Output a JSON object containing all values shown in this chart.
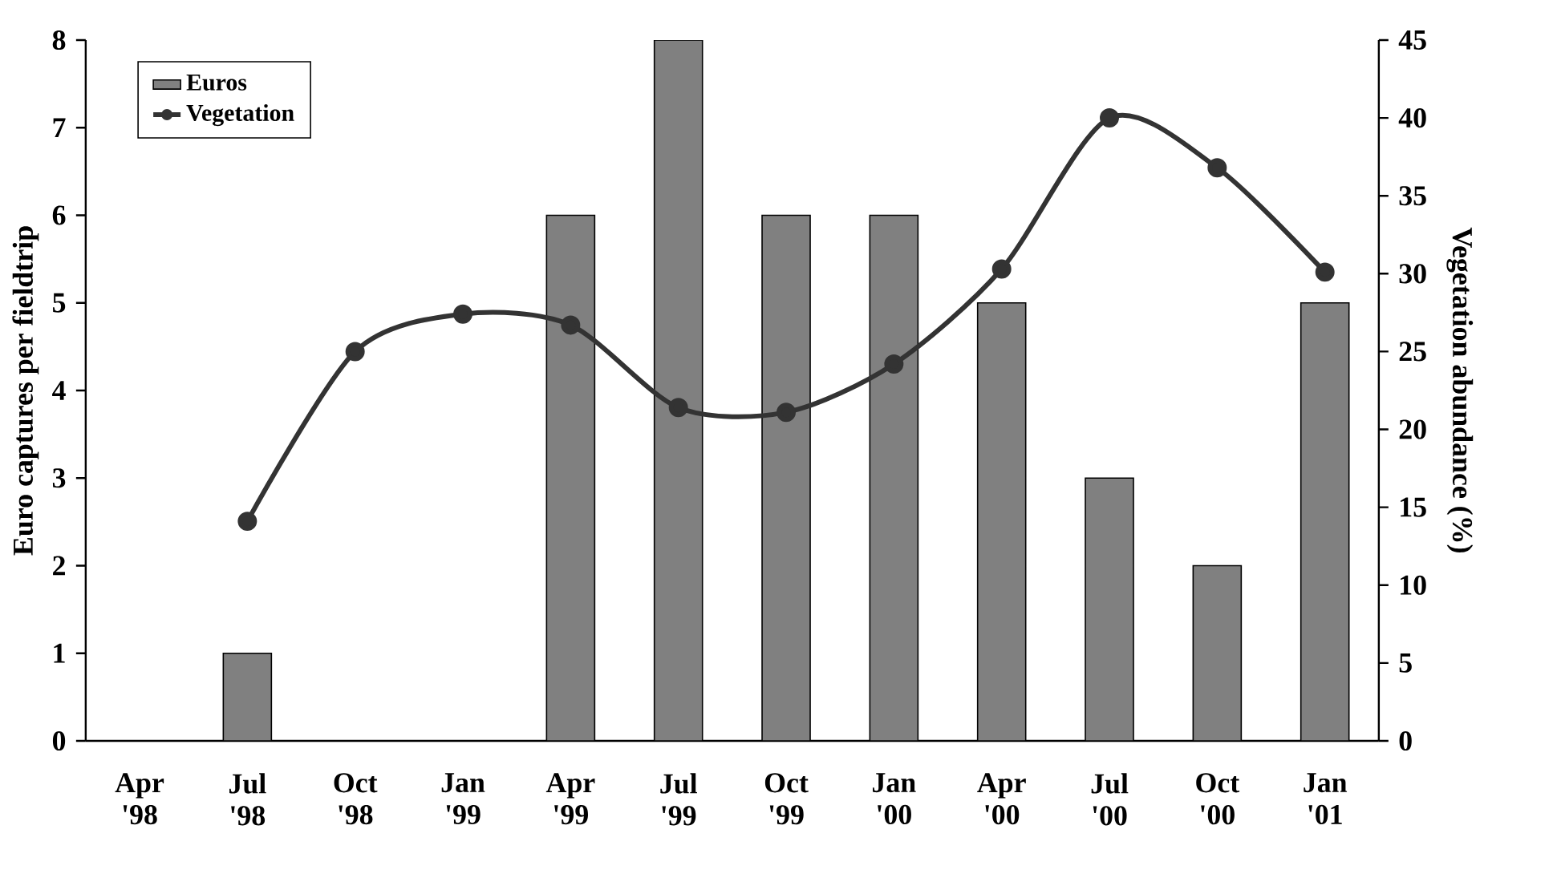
{
  "chart_data": {
    "type": "bar",
    "categories": [
      "Apr '98",
      "Jul '98",
      "Oct '98",
      "Jan '99",
      "Apr '99",
      "Jul '99",
      "Oct '99",
      "Jan '00",
      "Apr '00",
      "Jul '00",
      "Oct '00",
      "Jan '01"
    ],
    "series": [
      {
        "name": "Euros",
        "color": "#808080",
        "values": [
          0,
          1,
          0,
          0,
          6,
          8,
          6,
          6,
          5,
          3,
          2,
          5
        ]
      },
      {
        "name": "Vegetation",
        "color": "#333333",
        "type": "line",
        "axis": "y2",
        "values": [
          null,
          14.1,
          25.0,
          27.4,
          26.7,
          21.4,
          21.1,
          24.2,
          30.3,
          40.0,
          36.8,
          30.1
        ]
      }
    ],
    "ylabel": "Euro captures per fieldtrip",
    "y2label": "Vegetation abundance (%)",
    "ylim": [
      0,
      8
    ],
    "yticks": [
      0,
      1,
      2,
      3,
      4,
      5,
      6,
      7,
      8
    ],
    "y2lim": [
      0,
      45
    ],
    "y2ticks": [
      0,
      5,
      10,
      15,
      20,
      25,
      30,
      35,
      40,
      45
    ],
    "legend": "top left",
    "marker": "circle"
  }
}
